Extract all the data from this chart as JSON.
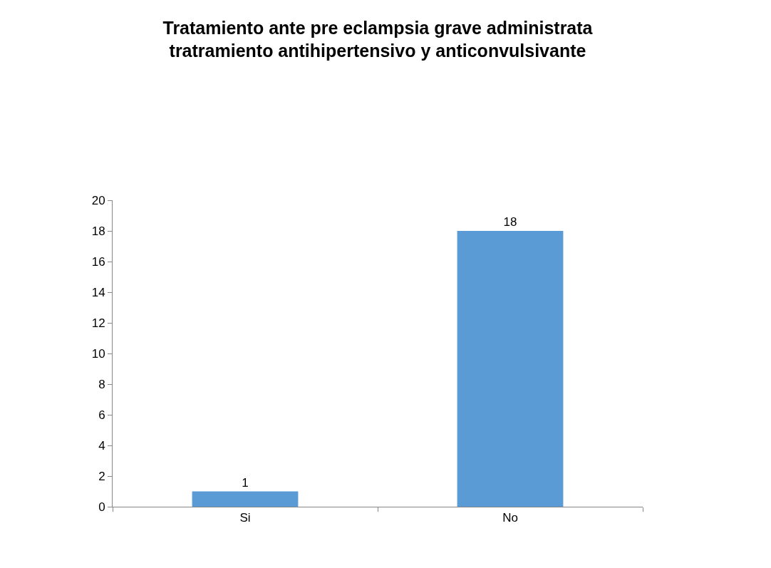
{
  "chart_data": {
    "type": "bar",
    "title": "Tratamiento ante pre eclampsia grave administrata\ntratramiento antihipertensivo y anticonvulsivante",
    "categories": [
      "Si",
      "No"
    ],
    "values": [
      1,
      18
    ],
    "color": "#5b9bd5",
    "ylim": [
      0,
      20
    ],
    "yticks": [
      0,
      2,
      4,
      6,
      8,
      10,
      12,
      14,
      16,
      18,
      20
    ],
    "data_labels": true
  }
}
